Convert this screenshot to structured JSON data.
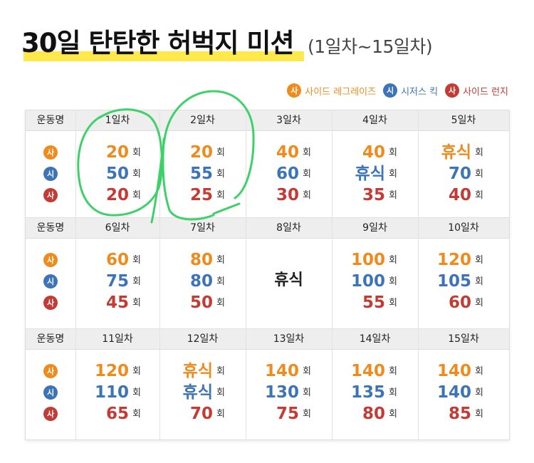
{
  "title": {
    "main": "30일 탄탄한 허벅지 미션",
    "range": "(1일차~15일차)"
  },
  "legend": [
    {
      "badge": "사",
      "label": "사이드 레그레이즈",
      "color": "#ee8b1c"
    },
    {
      "badge": "시",
      "label": "시저스 킥",
      "color": "#3d74b7"
    },
    {
      "badge": "사",
      "label": "사이드 런지",
      "color": "#c43a34"
    }
  ],
  "table": {
    "row_header": "운동명",
    "unit": "회",
    "sections": [
      {
        "days": [
          {
            "label": "1일차",
            "values": [
              "20",
              "50",
              "20"
            ]
          },
          {
            "label": "2일차",
            "values": [
              "20",
              "55",
              "25"
            ]
          },
          {
            "label": "3일차",
            "values": [
              "40",
              "60",
              "30"
            ]
          },
          {
            "label": "4일차",
            "values": [
              "40",
              "휴식",
              "35"
            ]
          },
          {
            "label": "5일차",
            "values": [
              "휴식",
              "70",
              "40"
            ]
          }
        ]
      },
      {
        "days": [
          {
            "label": "6일차",
            "values": [
              "60",
              "75",
              "45"
            ]
          },
          {
            "label": "7일차",
            "values": [
              "80",
              "80",
              "50"
            ]
          },
          {
            "label": "8일차",
            "rest": "휴식"
          },
          {
            "label": "9일차",
            "values": [
              "100",
              "100",
              "55"
            ]
          },
          {
            "label": "10일차",
            "values": [
              "120",
              "105",
              "60"
            ]
          }
        ]
      },
      {
        "days": [
          {
            "label": "11일차",
            "values": [
              "120",
              "110",
              "65"
            ]
          },
          {
            "label": "12일차",
            "values": [
              "휴식",
              "휴식",
              "70"
            ]
          },
          {
            "label": "13일차",
            "values": [
              "140",
              "130",
              "75"
            ]
          },
          {
            "label": "14일차",
            "values": [
              "140",
              "135",
              "80"
            ]
          },
          {
            "label": "15일차",
            "values": [
              "140",
              "140",
              "85"
            ]
          }
        ]
      }
    ]
  },
  "annotation": {
    "color": "#3ed16a",
    "type": "handwritten-circles",
    "circled_days": [
      "1일차",
      "2일차"
    ]
  }
}
